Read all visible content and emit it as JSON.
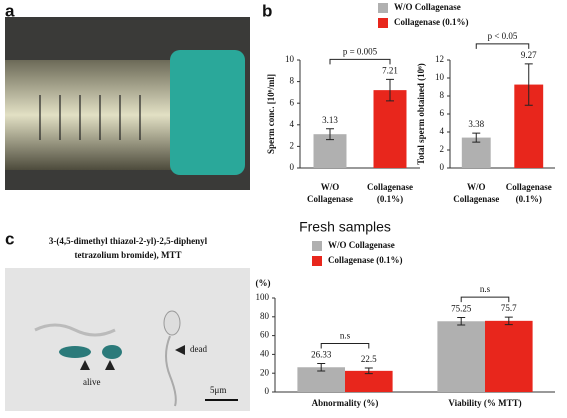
{
  "figure": {
    "panel_labels": [
      "a",
      "b",
      "c"
    ],
    "caption_c": [
      "3-(4,5-dimethyl thiazol-2-yl)-2,5-diphenyl",
      "tetrazolium bromide), MTT"
    ],
    "photo_labels": [
      "alive",
      "dead",
      "5μm"
    ]
  },
  "chart_data": [
    {
      "type": "bar",
      "ylabel": "Sperm conc. [10⁶/ml]",
      "categories": [
        "W/O Collagenase",
        "Collagenase (0.1%)"
      ],
      "values": [
        3.13,
        7.21
      ],
      "errors": [
        0.5,
        1.0
      ],
      "colors": [
        "#b0b0b0",
        "#e8261c"
      ],
      "legend": [
        "W/O Collagenase",
        "Collagenase (0.1%)"
      ],
      "annotation": "p = 0.005",
      "ylim": [
        0,
        10
      ],
      "yticks": [
        0,
        2,
        4,
        6,
        8,
        10
      ]
    },
    {
      "type": "bar",
      "ylabel": "Total sperm obtained (10⁶)",
      "categories": [
        "W/O Collagenase",
        "Collagenase (0.1%)"
      ],
      "values": [
        3.38,
        9.27
      ],
      "errors": [
        0.5,
        2.3
      ],
      "colors": [
        "#b0b0b0",
        "#e8261c"
      ],
      "annotation": "p < 0.05",
      "ylim": [
        0,
        12
      ],
      "yticks": [
        0,
        2,
        4,
        6,
        8,
        10,
        12
      ]
    },
    {
      "type": "bar",
      "title": "Fresh samples",
      "ylabel": "(%)",
      "categories": [
        "Abnormality (%)",
        "Viability (% MTT)"
      ],
      "series": [
        {
          "name": "W/O Collagenase",
          "color": "#b0b0b0",
          "values": [
            26.33,
            75.25
          ],
          "errors": [
            4,
            4
          ]
        },
        {
          "name": "Collagenase (0.1%)",
          "color": "#e8261c",
          "values": [
            22.5,
            75.7
          ],
          "errors": [
            3,
            4
          ]
        }
      ],
      "annotations": [
        "n.s",
        "n.s"
      ],
      "ylim": [
        0,
        100
      ],
      "yticks": [
        0,
        20,
        40,
        60,
        80,
        100
      ]
    }
  ]
}
